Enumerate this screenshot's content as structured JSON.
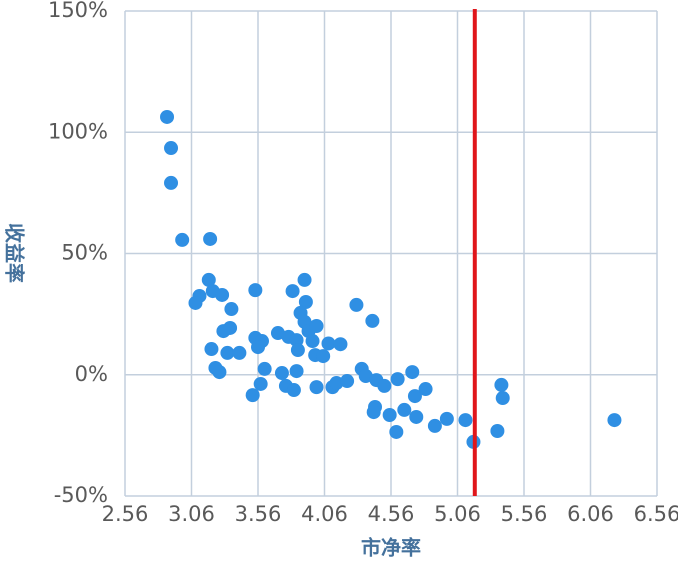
{
  "chart_data": {
    "type": "scatter",
    "x_label": "市净率",
    "y_label": "收益率",
    "xlim": [
      2.56,
      6.56
    ],
    "xticks": [
      2.56,
      3.06,
      3.56,
      4.06,
      4.56,
      5.06,
      5.56,
      6.06,
      6.56
    ],
    "ylim": [
      -50,
      150
    ],
    "yticks": [
      {
        "value": -50,
        "label": "-50%"
      },
      {
        "value": 0,
        "label": "0%"
      },
      {
        "value": 50,
        "label": "50%"
      },
      {
        "value": 100,
        "label": "100%"
      },
      {
        "value": 150,
        "label": "150%"
      }
    ],
    "grid": true,
    "reference_line": {
      "x": 5.19,
      "color": "#e0161b"
    },
    "series": [
      {
        "color": "#2f8fe3",
        "x": [
          2.876,
          2.906,
          2.906,
          2.99,
          3.2,
          3.19,
          3.12,
          3.09,
          3.22,
          3.29,
          3.36,
          3.35,
          3.3,
          3.21,
          3.33,
          3.42,
          3.24,
          3.27,
          3.54,
          3.54,
          3.59,
          3.56,
          3.61,
          3.58,
          3.52,
          3.71,
          3.79,
          3.82,
          3.91,
          3.92,
          3.88,
          3.91,
          3.85,
          3.86,
          3.94,
          4.0,
          3.97,
          3.99,
          4.05,
          4.09,
          4.18,
          3.74,
          3.85,
          3.77,
          3.83,
          4.0,
          4.12,
          4.15,
          4.23,
          4.3,
          4.42,
          4.34,
          4.37,
          4.45,
          4.51,
          4.44,
          4.43,
          4.55,
          4.61,
          4.66,
          4.72,
          4.74,
          4.75,
          4.82,
          4.6,
          4.89,
          4.98,
          5.12,
          5.18,
          5.36,
          5.39,
          5.4,
          6.24
        ],
        "values": [
          106.3,
          93.5,
          79.1,
          55.6,
          56.0,
          39.1,
          32.5,
          29.6,
          34.5,
          32.9,
          27.1,
          19.3,
          18.0,
          10.6,
          9.0,
          9.0,
          2.8,
          1.1,
          34.9,
          15.2,
          13.9,
          11.4,
          2.4,
          -3.8,
          -8.4,
          17.2,
          15.6,
          34.5,
          39.1,
          30.0,
          25.5,
          21.8,
          14.3,
          10.2,
          18.0,
          20.1,
          13.9,
          8.1,
          7.7,
          12.9,
          12.6,
          0.7,
          1.5,
          -4.6,
          -6.3,
          -5.1,
          -5.1,
          -3.4,
          -2.6,
          28.8,
          22.2,
          2.4,
          -0.5,
          -2.2,
          -4.6,
          -13.3,
          -15.4,
          -16.6,
          -1.8,
          -14.5,
          1.1,
          -8.8,
          -17.4,
          -5.9,
          -23.6,
          -21.1,
          -18.2,
          -18.7,
          -27.7,
          -23.2,
          -4.2,
          -9.6,
          -18.7
        ]
      }
    ]
  }
}
